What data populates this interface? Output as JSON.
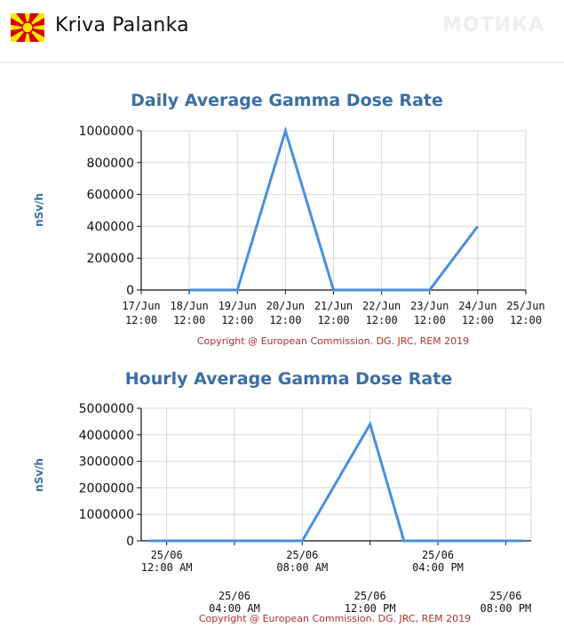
{
  "header": {
    "city": "Kriva Palanka",
    "watermark": "МОТИКА",
    "flag_icon": "north-macedonia-flag-icon",
    "flag_colors": {
      "field": "#D20000",
      "sun": "#FFE600"
    }
  },
  "colors": {
    "line": "#4a8fe0",
    "title": "#3a6ea5",
    "grid": "#d8d8d8",
    "copyright": "#b03030"
  },
  "chart_data": [
    {
      "type": "line",
      "title": "Daily Average Gamma Dose Rate",
      "ylabel": "nSv/h",
      "xlabel": "",
      "ylim": [
        0,
        1000000
      ],
      "yticks": [
        "1000000",
        "800000",
        "600000",
        "400000",
        "200000",
        "0"
      ],
      "categories": [
        [
          "17/Jun",
          "12:00"
        ],
        [
          "18/Jun",
          "12:00"
        ],
        [
          "19/Jun",
          "12:00"
        ],
        [
          "20/Jun",
          "12:00"
        ],
        [
          "21/Jun",
          "12:00"
        ],
        [
          "22/Jun",
          "12:00"
        ],
        [
          "23/Jun",
          "12:00"
        ],
        [
          "24/Jun",
          "12:00"
        ],
        [
          "25/Jun",
          "12:00"
        ]
      ],
      "series": [
        {
          "values": [
            null,
            0,
            0,
            1000000,
            0,
            0,
            0,
            400000,
            null
          ]
        }
      ],
      "grid": true,
      "copyright": "Copyright @ European Commission. DG. JRC, REM 2019"
    },
    {
      "type": "line",
      "title": "Hourly Average Gamma Dose Rate",
      "ylabel": "nSv/h",
      "xlabel": "",
      "ylim": [
        0,
        5000000
      ],
      "yticks": [
        "5000000",
        "4000000",
        "3000000",
        "2000000",
        "1000000",
        "0"
      ],
      "categories": [
        [
          "25/06",
          "12:00 AM"
        ],
        [
          "25/06",
          "04:00 AM"
        ],
        [
          "25/06",
          "08:00 AM"
        ],
        [
          "25/06",
          "12:00 PM"
        ],
        [
          "25/06",
          "04:00 PM"
        ],
        [
          "25/06",
          "08:00 PM"
        ]
      ],
      "x": [
        0,
        4,
        8,
        12,
        16,
        20
      ],
      "series": [
        {
          "points": [
            [
              -1,
              0
            ],
            [
              8,
              0
            ],
            [
              12,
              4400000
            ],
            [
              14,
              0
            ],
            [
              21,
              0
            ]
          ]
        }
      ],
      "grid": true,
      "copyright": "Copyright @ European Commission. DG. JRC, REM 2019"
    }
  ]
}
